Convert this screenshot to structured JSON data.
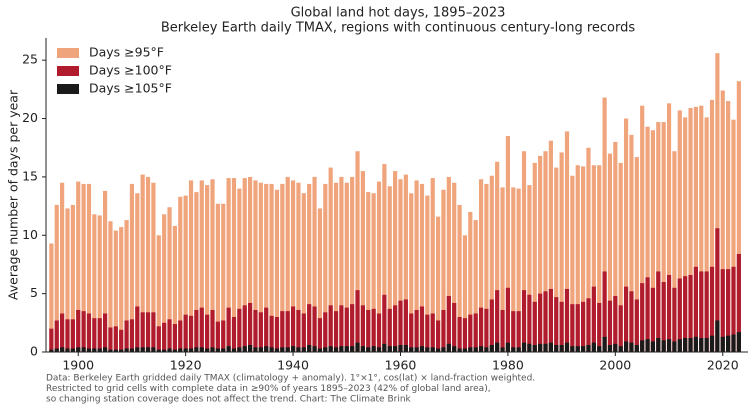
{
  "chart_data": {
    "type": "bar",
    "title": "Global land hot days, 1895–2023",
    "subtitle": "Berkeley Earth daily TMAX, regions with continuous century-long records",
    "y_label": "Average number of days per year",
    "footnote": [
      "Data: Berkeley Earth gridded daily TMAX (climatology + anomaly). 1°×1°, cos(lat) × land-fraction weighted.",
      "Restricted to grid cells with complete data in ≥90% of years 1895–2023 (42% of global land area),",
      "so changing station coverage does not affect the trend. Chart: The Climate Brink"
    ],
    "legend": "upper left",
    "xlim": [
      1894,
      2024.7
    ],
    "ylim": [
      0,
      26.9
    ],
    "xticks": [
      1900,
      1920,
      1940,
      1960,
      1980,
      2000,
      2020
    ],
    "yticks": [
      0,
      5,
      10,
      15,
      20,
      25
    ],
    "x": [
      1895,
      1896,
      1897,
      1898,
      1899,
      1900,
      1901,
      1902,
      1903,
      1904,
      1905,
      1906,
      1907,
      1908,
      1909,
      1910,
      1911,
      1912,
      1913,
      1914,
      1915,
      1916,
      1917,
      1918,
      1919,
      1920,
      1921,
      1922,
      1923,
      1924,
      1925,
      1926,
      1927,
      1928,
      1929,
      1930,
      1931,
      1932,
      1933,
      1934,
      1935,
      1936,
      1937,
      1938,
      1939,
      1940,
      1941,
      1942,
      1943,
      1944,
      1945,
      1946,
      1947,
      1948,
      1949,
      1950,
      1951,
      1952,
      1953,
      1954,
      1955,
      1956,
      1957,
      1958,
      1959,
      1960,
      1961,
      1962,
      1963,
      1964,
      1965,
      1966,
      1967,
      1968,
      1969,
      1970,
      1971,
      1972,
      1973,
      1974,
      1975,
      1976,
      1977,
      1978,
      1979,
      1980,
      1981,
      1982,
      1983,
      1984,
      1985,
      1986,
      1987,
      1988,
      1989,
      1990,
      1991,
      1992,
      1993,
      1994,
      1995,
      1996,
      1997,
      1998,
      1999,
      2000,
      2001,
      2002,
      2003,
      2004,
      2005,
      2006,
      2007,
      2008,
      2009,
      2010,
      2011,
      2012,
      2013,
      2014,
      2015,
      2016,
      2017,
      2018,
      2019,
      2020,
      2021,
      2022,
      2023
    ],
    "series": [
      {
        "name": "Days ≥95°F",
        "color": "#f0a47c",
        "values": [
          9.3,
          12.6,
          14.5,
          12.3,
          12.6,
          14.6,
          14.4,
          14.4,
          11.8,
          11.7,
          13.8,
          11.2,
          10.4,
          10.7,
          11.3,
          14.4,
          13.6,
          15.2,
          15.0,
          14.5,
          10.0,
          11.8,
          12.4,
          10.8,
          13.3,
          13.4,
          14.7,
          13.7,
          14.7,
          14.3,
          14.8,
          12.7,
          12.7,
          14.9,
          14.9,
          14.0,
          14.9,
          15.0,
          14.7,
          14.5,
          14.4,
          14.4,
          13.9,
          14.4,
          15.0,
          14.7,
          14.5,
          13.6,
          14.4,
          15.0,
          12.3,
          14.4,
          15.8,
          14.5,
          15.0,
          14.5,
          15.0,
          17.2,
          15.5,
          13.7,
          13.6,
          14.6,
          16.1,
          14.2,
          15.5,
          14.8,
          15.2,
          13.6,
          14.7,
          14.4,
          13.4,
          14.9,
          11.6,
          13.9,
          15.0,
          14.5,
          12.6,
          10.0,
          12.0,
          11.3,
          14.8,
          14.4,
          15.1,
          16.3,
          14.1,
          18.5,
          14.1,
          14.0,
          17.2,
          14.3,
          16.2,
          16.8,
          17.2,
          18.1,
          15.8,
          17.1,
          18.9,
          15.1,
          16.0,
          15.9,
          17.5,
          16.0,
          16.0,
          21.8,
          17.0,
          18.0,
          16.2,
          20.0,
          18.6,
          16.7,
          21.1,
          19.3,
          19.0,
          19.7,
          19.7,
          21.3,
          17.2,
          20.7,
          20.1,
          20.9,
          21.0,
          21.1,
          20.1,
          21.6,
          25.6,
          22.4,
          21.5,
          19.9,
          23.2
        ]
      },
      {
        "name": "Days ≥100°F",
        "color": "#b01c2e",
        "values": [
          2.0,
          2.7,
          3.3,
          2.8,
          2.8,
          3.6,
          3.5,
          3.3,
          2.9,
          2.9,
          3.3,
          2.1,
          2.2,
          1.9,
          2.7,
          2.8,
          3.9,
          3.4,
          3.4,
          3.4,
          2.2,
          2.5,
          2.8,
          2.4,
          2.7,
          3.2,
          3.1,
          3.6,
          3.8,
          3.2,
          3.6,
          2.6,
          2.7,
          3.8,
          3.0,
          3.7,
          4.0,
          4.2,
          3.6,
          3.4,
          3.8,
          3.1,
          3.0,
          3.5,
          3.5,
          3.9,
          3.6,
          3.3,
          4.1,
          3.9,
          2.9,
          3.4,
          4.0,
          3.5,
          4.0,
          3.8,
          4.1,
          5.3,
          4.0,
          3.6,
          3.7,
          3.3,
          4.9,
          3.7,
          4.0,
          4.4,
          4.5,
          3.3,
          3.6,
          3.9,
          3.2,
          3.3,
          2.7,
          3.6,
          4.8,
          4.2,
          3.0,
          2.9,
          3.2,
          3.3,
          3.8,
          3.7,
          4.5,
          5.3,
          3.6,
          5.5,
          3.5,
          3.5,
          5.3,
          4.9,
          4.3,
          5.0,
          5.2,
          5.4,
          4.7,
          4.3,
          5.4,
          4.1,
          4.1,
          4.3,
          4.6,
          5.6,
          4.2,
          6.9,
          4.4,
          4.8,
          4.0,
          5.6,
          5.2,
          4.5,
          5.9,
          6.4,
          5.5,
          6.9,
          6.0,
          6.6,
          5.5,
          6.3,
          6.5,
          6.6,
          7.3,
          6.9,
          6.9,
          7.3,
          10.6,
          7.1,
          7.1,
          7.3,
          8.4
        ]
      },
      {
        "name": "Days ≥105°F",
        "color": "#1a1a1a",
        "values": [
          0.2,
          0.3,
          0.4,
          0.3,
          0.3,
          0.4,
          0.4,
          0.3,
          0.3,
          0.3,
          0.4,
          0.2,
          0.2,
          0.2,
          0.3,
          0.3,
          0.4,
          0.4,
          0.4,
          0.4,
          0.2,
          0.2,
          0.3,
          0.2,
          0.3,
          0.3,
          0.3,
          0.4,
          0.4,
          0.3,
          0.4,
          0.3,
          0.3,
          0.5,
          0.3,
          0.4,
          0.5,
          0.6,
          0.4,
          0.4,
          0.5,
          0.4,
          0.3,
          0.4,
          0.4,
          0.5,
          0.4,
          0.4,
          0.6,
          0.5,
          0.3,
          0.4,
          0.5,
          0.4,
          0.5,
          0.5,
          0.5,
          0.8,
          0.5,
          0.4,
          0.5,
          0.4,
          0.7,
          0.5,
          0.5,
          0.6,
          0.6,
          0.4,
          0.4,
          0.5,
          0.4,
          0.4,
          0.3,
          0.4,
          0.7,
          0.5,
          0.3,
          0.3,
          0.4,
          0.4,
          0.5,
          0.4,
          0.6,
          0.8,
          0.4,
          0.8,
          0.4,
          0.4,
          0.8,
          0.7,
          0.6,
          0.7,
          0.7,
          0.8,
          0.6,
          0.6,
          0.8,
          0.5,
          0.5,
          0.5,
          0.6,
          0.8,
          0.5,
          1.3,
          0.6,
          0.7,
          0.5,
          0.9,
          0.8,
          0.6,
          1.0,
          1.1,
          0.9,
          1.2,
          1.0,
          1.1,
          0.9,
          1.1,
          1.2,
          1.2,
          1.3,
          1.2,
          1.2,
          1.4,
          2.7,
          1.3,
          1.4,
          1.5,
          1.7
        ]
      }
    ]
  }
}
